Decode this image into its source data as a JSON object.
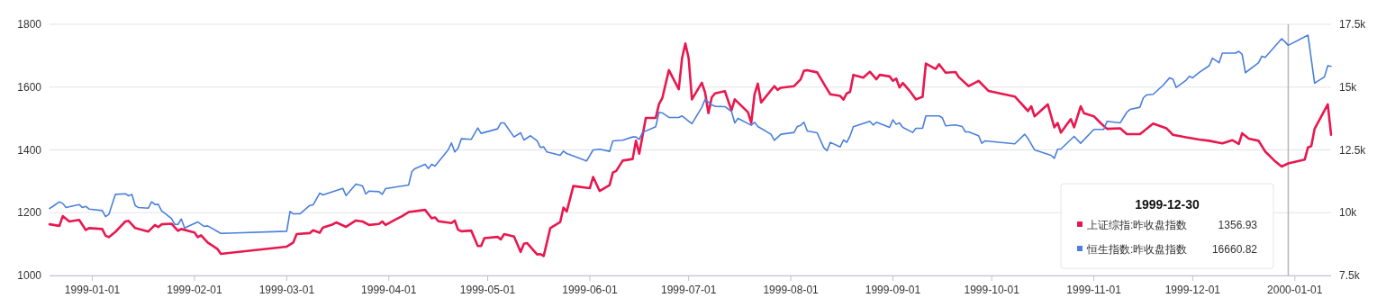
{
  "chart_data": {
    "type": "line",
    "xlim": [
      "1998-12-19",
      "2000-01-12"
    ],
    "xticks": [
      "1999-01-01",
      "1999-02-01",
      "1999-03-01",
      "1999-04-01",
      "1999-05-01",
      "1999-06-01",
      "1999-07-01",
      "1999-08-01",
      "1999-09-01",
      "1999-10-01",
      "1999-11-01",
      "1999-12-01",
      "2000-01-01"
    ],
    "ylim": [
      1000,
      1800
    ],
    "yticks": [
      1000,
      1200,
      1400,
      1600,
      1800
    ],
    "y2lim": [
      7500,
      17500
    ],
    "y2ticks": [
      {
        "value": 7500,
        "label": "7.5k"
      },
      {
        "value": 10000,
        "label": "10k"
      },
      {
        "value": 12500,
        "label": "12.5k"
      },
      {
        "value": 15000,
        "label": "15k"
      },
      {
        "value": 17500,
        "label": "17.5k"
      }
    ],
    "grid": "y",
    "legend": "bottom right",
    "legend_title": "1999-12-30",
    "marker": "none",
    "annotations": [
      "1356.93",
      "16660.82"
    ],
    "ref_lines": [
      {
        "axis": "x",
        "value": "1999-12-30",
        "color": "#b5b5b5"
      }
    ],
    "series": [
      {
        "name": "上证综指:昨收盘指数",
        "color": "#e8184f",
        "x": [
          "1998-12-19",
          "1998-12-22",
          "1998-12-23",
          "1998-12-25",
          "1998-12-28",
          "1998-12-30",
          "1998-12-31",
          "1999-01-04",
          "1999-01-05",
          "1999-01-06",
          "1999-01-08",
          "1999-01-11",
          "1999-01-12",
          "1999-01-14",
          "1999-01-18",
          "1999-01-20",
          "1999-01-21",
          "1999-01-22",
          "1999-01-25",
          "1999-01-27",
          "1999-01-28",
          "1999-02-01",
          "1999-02-02",
          "1999-02-03",
          "1999-02-05",
          "1999-02-08",
          "1999-02-09",
          "1999-03-01",
          "1999-03-03",
          "1999-03-04",
          "1999-03-08",
          "1999-03-09",
          "1999-03-11",
          "1999-03-12",
          "1999-03-15",
          "1999-03-16",
          "1999-03-19",
          "1999-03-22",
          "1999-03-24",
          "1999-03-26",
          "1999-03-29",
          "1999-03-30",
          "1999-03-31",
          "1999-04-03",
          "1999-04-05",
          "1999-04-07",
          "1999-04-12",
          "1999-04-14",
          "1999-04-15",
          "1999-04-16",
          "1999-04-20",
          "1999-04-21",
          "1999-04-22",
          "1999-04-23",
          "1999-04-26",
          "1999-04-28",
          "1999-04-29",
          "1999-04-30",
          "1999-05-04",
          "1999-05-05",
          "1999-05-06",
          "1999-05-09",
          "1999-05-11",
          "1999-05-12",
          "1999-05-13",
          "1999-05-16",
          "1999-05-17",
          "1999-05-18",
          "1999-05-20",
          "1999-05-23",
          "1999-05-24",
          "1999-05-25",
          "1999-05-27",
          "1999-06-01",
          "1999-06-02",
          "1999-06-04",
          "1999-06-07",
          "1999-06-08",
          "1999-06-09",
          "1999-06-11",
          "1999-06-14",
          "1999-06-15",
          "1999-06-16",
          "1999-06-18",
          "1999-06-21",
          "1999-06-22",
          "1999-06-23",
          "1999-06-25",
          "1999-06-28",
          "1999-06-29",
          "1999-06-30",
          "1999-07-01",
          "1999-07-02",
          "1999-07-05",
          "1999-07-06",
          "1999-07-07",
          "1999-07-08",
          "1999-07-09",
          "1999-07-12",
          "1999-07-14",
          "1999-07-15",
          "1999-07-19",
          "1999-07-20",
          "1999-07-21",
          "1999-07-22",
          "1999-07-23",
          "1999-07-27",
          "1999-07-28",
          "1999-07-29",
          "1999-08-02",
          "1999-08-04",
          "1999-08-05",
          "1999-08-06",
          "1999-08-09",
          "1999-08-12",
          "1999-08-13",
          "1999-08-16",
          "1999-08-17",
          "1999-08-18",
          "1999-08-19",
          "1999-08-20",
          "1999-08-23",
          "1999-08-25",
          "1999-08-27",
          "1999-08-28",
          "1999-08-31",
          "1999-09-01",
          "1999-09-02",
          "1999-09-03",
          "1999-09-04",
          "1999-09-06",
          "1999-09-08",
          "1999-09-10",
          "1999-09-11",
          "1999-09-14",
          "1999-09-15",
          "1999-09-17",
          "1999-09-20",
          "1999-09-21",
          "1999-09-24",
          "1999-09-27",
          "1999-09-30",
          "1999-10-08",
          "1999-10-12",
          "1999-10-13",
          "1999-10-14",
          "1999-10-18",
          "1999-10-20",
          "1999-10-21",
          "1999-10-22",
          "1999-10-25",
          "1999-10-26",
          "1999-10-28",
          "1999-10-29",
          "1999-11-01",
          "1999-11-03",
          "1999-11-05",
          "1999-11-09",
          "1999-11-11",
          "1999-11-15",
          "1999-11-19",
          "1999-11-23",
          "1999-11-25",
          "1999-11-29",
          "1999-12-03",
          "1999-12-06",
          "1999-12-10",
          "1999-12-13",
          "1999-12-15",
          "1999-12-16",
          "1999-12-18",
          "1999-12-21",
          "1999-12-23",
          "1999-12-26",
          "1999-12-28",
          "1999-12-30",
          "2000-01-04",
          "2000-01-05",
          "2000-01-06",
          "2000-01-07",
          "2000-01-11",
          "2000-01-12"
        ],
        "values": [
          1163,
          1158,
          1189,
          1172,
          1177,
          1145,
          1151,
          1148,
          1127,
          1122,
          1139,
          1172,
          1174,
          1151,
          1140,
          1161,
          1154,
          1163,
          1165,
          1142,
          1148,
          1137,
          1122,
          1128,
          1105,
          1084,
          1069,
          1092,
          1105,
          1132,
          1135,
          1144,
          1136,
          1153,
          1163,
          1169,
          1155,
          1175,
          1172,
          1161,
          1164,
          1172,
          1161,
          1178,
          1189,
          1202,
          1209,
          1182,
          1185,
          1173,
          1167,
          1175,
          1146,
          1141,
          1143,
          1094,
          1094,
          1119,
          1123,
          1115,
          1132,
          1124,
          1075,
          1101,
          1103,
          1067,
          1068,
          1062,
          1151,
          1170,
          1216,
          1204,
          1285,
          1278,
          1314,
          1269,
          1288,
          1328,
          1333,
          1366,
          1371,
          1429,
          1388,
          1502,
          1502,
          1546,
          1565,
          1654,
          1593,
          1692,
          1739,
          1692,
          1561,
          1614,
          1582,
          1517,
          1567,
          1580,
          1587,
          1526,
          1561,
          1520,
          1486,
          1577,
          1611,
          1551,
          1603,
          1591,
          1598,
          1603,
          1625,
          1652,
          1654,
          1647,
          1594,
          1577,
          1572,
          1560,
          1580,
          1585,
          1639,
          1630,
          1649,
          1625,
          1639,
          1634,
          1620,
          1627,
          1599,
          1613,
          1589,
          1561,
          1569,
          1675,
          1658,
          1673,
          1646,
          1648,
          1632,
          1603,
          1620,
          1588,
          1570,
          1524,
          1539,
          1507,
          1545,
          1472,
          1486,
          1455,
          1498,
          1472,
          1539,
          1517,
          1507,
          1486,
          1467,
          1469,
          1450,
          1450,
          1484,
          1469,
          1448,
          1440,
          1433,
          1429,
          1421,
          1431,
          1419,
          1453,
          1436,
          1429,
          1395,
          1364,
          1347,
          1356.93,
          1369,
          1408,
          1412,
          1467,
          1545,
          1448
        ]
      },
      {
        "name": "恒生指数:昨收盘指数",
        "color": "#4a7fdb",
        "axis": "y2",
        "x": [
          "1998-12-19",
          "1998-12-20",
          "1998-12-22",
          "1998-12-23",
          "1998-12-24",
          "1998-12-28",
          "1998-12-29",
          "1998-12-30",
          "1998-12-31",
          "1999-01-04",
          "1999-01-05",
          "1999-01-06",
          "1999-01-08",
          "1999-01-11",
          "1999-01-12",
          "1999-01-13",
          "1999-01-14",
          "1999-01-15",
          "1999-01-18",
          "1999-01-19",
          "1999-01-20",
          "1999-01-21",
          "1999-01-22",
          "1999-01-25",
          "1999-01-26",
          "1999-01-27",
          "1999-01-28",
          "1999-01-29",
          "1999-02-02",
          "1999-02-04",
          "1999-02-05",
          "1999-02-09",
          "1999-03-01",
          "1999-03-02",
          "1999-03-03",
          "1999-03-05",
          "1999-03-08",
          "1999-03-09",
          "1999-03-11",
          "1999-03-12",
          "1999-03-18",
          "1999-03-19",
          "1999-03-22",
          "1999-03-24",
          "1999-03-25",
          "1999-03-26",
          "1999-03-29",
          "1999-03-30",
          "1999-03-31",
          "1999-04-07",
          "1999-04-08",
          "1999-04-09",
          "1999-04-12",
          "1999-04-13",
          "1999-04-14",
          "1999-04-15",
          "1999-04-19",
          "1999-04-20",
          "1999-04-21",
          "1999-04-22",
          "1999-04-23",
          "1999-04-26",
          "1999-04-28",
          "1999-04-29",
          "1999-05-04",
          "1999-05-05",
          "1999-05-06",
          "1999-05-09",
          "1999-05-11",
          "1999-05-12",
          "1999-05-14",
          "1999-05-16",
          "1999-05-17",
          "1999-05-18",
          "1999-05-19",
          "1999-05-23",
          "1999-05-24",
          "1999-05-25",
          "1999-05-31",
          "1999-06-02",
          "1999-06-04",
          "1999-06-07",
          "1999-06-08",
          "1999-06-11",
          "1999-06-14",
          "1999-06-15",
          "1999-06-16",
          "1999-06-17",
          "1999-06-21",
          "1999-06-22",
          "1999-06-23",
          "1999-06-25",
          "1999-06-28",
          "1999-06-29",
          "1999-07-02",
          "1999-07-05",
          "1999-07-06",
          "1999-07-08",
          "1999-07-09",
          "1999-07-12",
          "1999-07-14",
          "1999-07-15",
          "1999-07-16",
          "1999-07-20",
          "1999-07-21",
          "1999-07-22",
          "1999-07-26",
          "1999-07-27",
          "1999-07-29",
          "1999-08-02",
          "1999-08-03",
          "1999-08-04",
          "1999-08-05",
          "1999-08-06",
          "1999-08-09",
          "1999-08-11",
          "1999-08-12",
          "1999-08-13",
          "1999-08-16",
          "1999-08-17",
          "1999-08-18",
          "1999-08-19",
          "1999-08-20",
          "1999-08-25",
          "1999-08-26",
          "1999-08-27",
          "1999-08-31",
          "1999-09-01",
          "1999-09-02",
          "1999-09-03",
          "1999-09-04",
          "1999-09-07",
          "1999-09-08",
          "1999-09-10",
          "1999-09-11",
          "1999-09-15",
          "1999-09-16",
          "1999-09-17",
          "1999-09-20",
          "1999-09-22",
          "1999-09-23",
          "1999-09-24",
          "1999-09-27",
          "1999-09-28",
          "1999-09-29",
          "1999-10-08",
          "1999-10-11",
          "1999-10-12",
          "1999-10-14",
          "1999-10-19",
          "1999-10-20",
          "1999-10-21",
          "1999-10-22",
          "1999-10-26",
          "1999-10-28",
          "1999-11-01",
          "1999-11-04",
          "1999-11-05",
          "1999-11-09",
          "1999-11-11",
          "1999-11-12",
          "1999-11-15",
          "1999-11-16",
          "1999-11-17",
          "1999-11-19",
          "1999-11-22",
          "1999-11-24",
          "1999-11-25",
          "1999-11-26",
          "1999-11-29",
          "1999-11-30",
          "1999-12-01",
          "1999-12-03",
          "1999-12-06",
          "1999-12-07",
          "1999-12-09",
          "1999-12-10",
          "1999-12-14",
          "1999-12-15",
          "1999-12-16",
          "1999-12-17",
          "1999-12-21",
          "1999-12-22",
          "1999-12-23",
          "1999-12-28",
          "1999-12-29",
          "1999-12-30",
          "2000-01-05",
          "2000-01-07",
          "2000-01-10",
          "2000-01-11",
          "2000-01-12"
        ],
        "values": [
          10168,
          10252,
          10432,
          10372,
          10204,
          10324,
          10204,
          10252,
          10145,
          10085,
          9846,
          9930,
          10731,
          10755,
          10671,
          10731,
          10288,
          10204,
          10180,
          10432,
          10324,
          10336,
          10073,
          9774,
          9535,
          9535,
          9750,
          9391,
          9630,
          9451,
          9475,
          9176,
          9260,
          10049,
          9953,
          9953,
          10288,
          10312,
          10779,
          10707,
          10970,
          10683,
          11137,
          11065,
          10743,
          10862,
          10838,
          10731,
          10958,
          11101,
          11640,
          11759,
          11927,
          11759,
          11927,
          11855,
          12501,
          12776,
          12417,
          12561,
          12943,
          12919,
          13374,
          13158,
          13338,
          13577,
          13577,
          13015,
          13182,
          12895,
          13063,
          12859,
          12596,
          12620,
          12417,
          12285,
          12453,
          12357,
          12058,
          12501,
          12525,
          12441,
          12859,
          12883,
          13015,
          13015,
          12919,
          13194,
          13422,
          13996,
          13972,
          13792,
          13792,
          13852,
          13541,
          14199,
          14510,
          14295,
          14235,
          14223,
          14032,
          13577,
          13757,
          13481,
          13601,
          13434,
          13123,
          12883,
          13123,
          13194,
          13434,
          13481,
          13601,
          13254,
          13182,
          12596,
          12465,
          12800,
          12620,
          12895,
          12800,
          13063,
          13422,
          13637,
          13493,
          13601,
          13398,
          13697,
          13517,
          13577,
          13398,
          13194,
          13362,
          13362,
          13852,
          13852,
          13780,
          13457,
          13493,
          13434,
          13218,
          13218,
          13063,
          12764,
          12860,
          12740,
          13123,
          12955,
          12501,
          12285,
          12166,
          12525,
          12537,
          13039,
          12764,
          13314,
          13314,
          13637,
          13577,
          13996,
          14115,
          14199,
          14570,
          14689,
          14713,
          15072,
          15371,
          15311,
          14988,
          15275,
          15431,
          15371,
          15586,
          15850,
          16149,
          15969,
          16352,
          16352,
          16424,
          16304,
          15574,
          15969,
          16232,
          16184,
          16926,
          16806,
          16660.82,
          17069,
          15156,
          15407,
          15850,
          15826
        ]
      }
    ]
  }
}
